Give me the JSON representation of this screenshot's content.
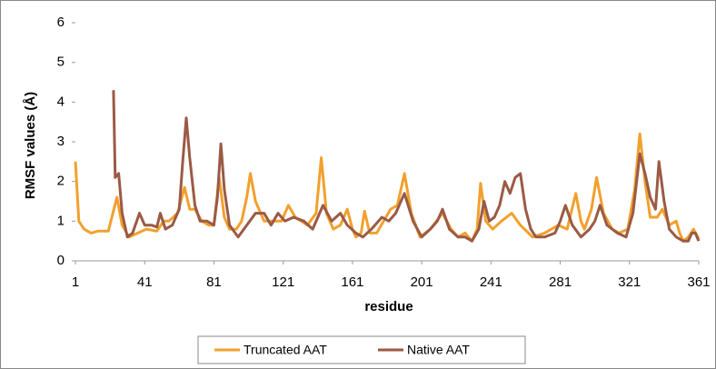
{
  "chart_data": {
    "type": "line",
    "xlabel": "residue",
    "ylabel": "RMSF values (Å)",
    "xlim": [
      1,
      361
    ],
    "xticks": [
      1,
      41,
      81,
      121,
      161,
      201,
      241,
      281,
      321,
      361
    ],
    "ylim": [
      0,
      6
    ],
    "yticks": [
      0,
      1,
      2,
      3,
      4,
      5,
      6
    ],
    "legend": "bottom",
    "series": [
      {
        "name": "Truncated AAT",
        "color": "#f2a02d",
        "x": [
          1,
          3,
          6,
          10,
          14,
          20,
          25,
          28,
          32,
          37,
          42,
          48,
          52,
          55,
          60,
          64,
          67,
          70,
          74,
          78,
          81,
          84,
          87,
          90,
          94,
          97,
          100,
          102,
          105,
          110,
          115,
          120,
          124,
          128,
          135,
          140,
          143,
          146,
          150,
          154,
          158,
          161,
          163,
          166,
          168,
          171,
          175,
          179,
          183,
          187,
          191,
          195,
          200,
          206,
          213,
          218,
          222,
          226,
          230,
          233,
          235,
          238,
          242,
          247,
          253,
          258,
          265,
          272,
          280,
          285,
          290,
          293,
          295,
          299,
          302,
          306,
          311,
          315,
          320,
          324,
          327,
          330,
          333,
          337,
          340,
          344,
          348,
          350,
          352,
          355,
          358,
          361
        ],
        "values": [
          2.5,
          1.0,
          0.8,
          0.7,
          0.75,
          0.75,
          1.6,
          0.9,
          0.6,
          0.7,
          0.8,
          0.75,
          1.0,
          1.0,
          1.2,
          1.85,
          1.3,
          1.3,
          1.0,
          0.9,
          0.9,
          2.1,
          1.1,
          0.8,
          0.8,
          1.0,
          1.6,
          2.2,
          1.5,
          1.0,
          1.0,
          1.0,
          1.4,
          1.1,
          0.9,
          1.2,
          2.6,
          1.2,
          0.8,
          0.9,
          1.3,
          0.8,
          0.6,
          0.7,
          1.25,
          0.7,
          0.7,
          1.0,
          1.3,
          1.4,
          2.2,
          1.2,
          0.6,
          0.8,
          1.2,
          0.8,
          0.6,
          0.7,
          0.5,
          0.8,
          1.95,
          1.0,
          0.8,
          1.0,
          1.2,
          0.9,
          0.6,
          0.7,
          0.9,
          0.8,
          1.7,
          1.0,
          0.8,
          1.3,
          2.1,
          1.2,
          0.8,
          0.7,
          0.8,
          1.8,
          3.2,
          2.0,
          1.1,
          1.1,
          1.3,
          0.9,
          1.0,
          0.7,
          0.5,
          0.6,
          0.8,
          0.55
        ]
      },
      {
        "name": "Native AAT",
        "color": "#9b5a45",
        "x": [
          23,
          24,
          26,
          28,
          31,
          34,
          38,
          41,
          45,
          48,
          50,
          53,
          57,
          61,
          63,
          65,
          67,
          70,
          73,
          77,
          81,
          83,
          85,
          87,
          90,
          95,
          100,
          105,
          110,
          114,
          118,
          122,
          127,
          133,
          138,
          144,
          149,
          154,
          158,
          163,
          167,
          172,
          178,
          182,
          186,
          191,
          196,
          201,
          206,
          210,
          213,
          217,
          222,
          226,
          230,
          234,
          237,
          240,
          243,
          246,
          249,
          252,
          255,
          258,
          261,
          264,
          267,
          272,
          278,
          281,
          284,
          288,
          293,
          298,
          301,
          304,
          308,
          314,
          319,
          323,
          327,
          330,
          333,
          336,
          338,
          341,
          344,
          348,
          352,
          355,
          357,
          359,
          361
        ],
        "values": [
          4.3,
          2.1,
          2.2,
          1.2,
          0.6,
          0.7,
          1.2,
          0.9,
          0.9,
          0.85,
          1.2,
          0.8,
          0.9,
          1.3,
          2.5,
          3.6,
          2.6,
          1.4,
          1.0,
          1.0,
          0.9,
          1.6,
          2.95,
          1.8,
          0.9,
          0.6,
          0.9,
          1.2,
          1.2,
          0.9,
          1.2,
          1.0,
          1.1,
          1.0,
          0.8,
          1.4,
          1.0,
          1.2,
          0.9,
          0.7,
          0.6,
          0.8,
          1.1,
          1.0,
          1.2,
          1.7,
          1.0,
          0.6,
          0.8,
          1.0,
          1.3,
          0.8,
          0.6,
          0.6,
          0.5,
          0.8,
          1.5,
          1.0,
          1.1,
          1.4,
          2.0,
          1.7,
          2.1,
          2.2,
          1.3,
          0.8,
          0.6,
          0.6,
          0.7,
          1.0,
          1.4,
          0.9,
          0.6,
          0.8,
          1.0,
          1.4,
          0.9,
          0.7,
          0.6,
          1.2,
          2.7,
          2.2,
          1.6,
          1.3,
          2.5,
          1.5,
          0.8,
          0.6,
          0.5,
          0.5,
          0.7,
          0.7,
          0.5
        ]
      }
    ]
  }
}
